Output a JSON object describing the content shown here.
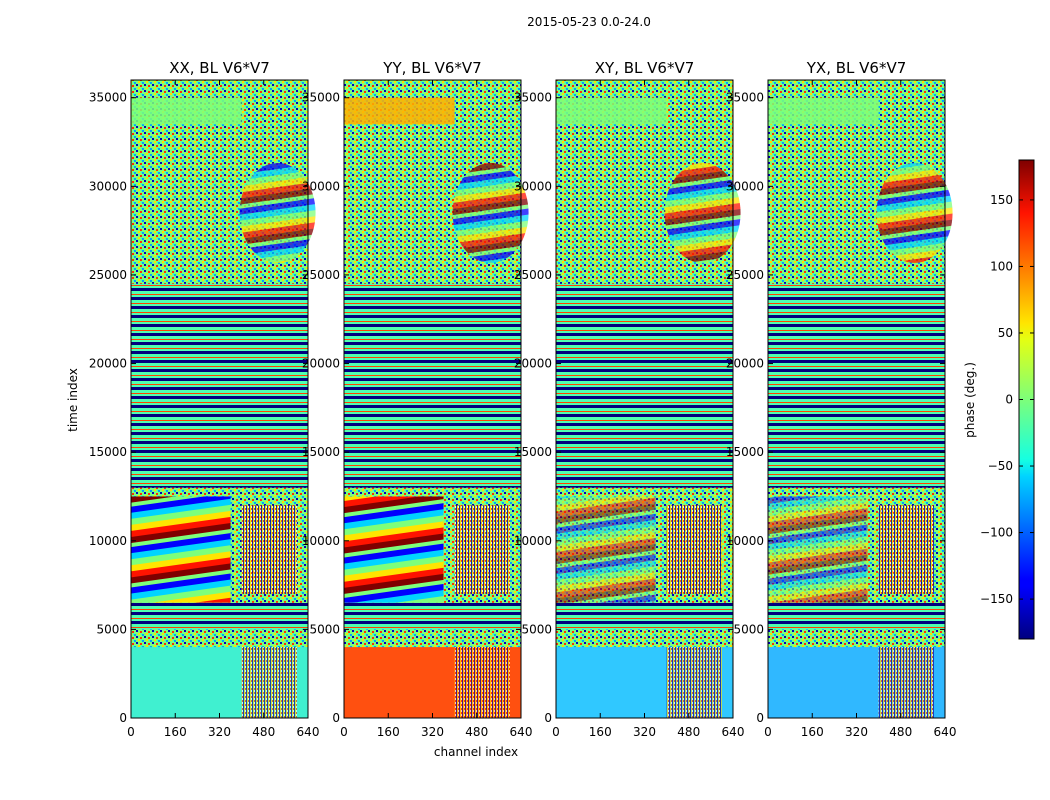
{
  "chart_data": {
    "type": "heatmap",
    "title": "2015-05-23 0.0-24.0",
    "xlabel": "channel index",
    "ylabel": "time index",
    "xlim": [
      0,
      640
    ],
    "ylim": [
      0,
      36000
    ],
    "x_ticks": [
      0,
      160,
      320,
      480,
      640
    ],
    "y_ticks": [
      0,
      5000,
      10000,
      15000,
      20000,
      25000,
      30000,
      35000
    ],
    "colormap": "jet",
    "panels": [
      {
        "id": "xx",
        "title": "XX, BL V6*V7",
        "bottom_band_color": "#40f0d0",
        "bottom_band_phase": -30
      },
      {
        "id": "yy",
        "title": "YY, BL V6*V7",
        "bottom_band_color": "#ff5010",
        "bottom_band_phase": 120
      },
      {
        "id": "xy",
        "title": "XY, BL V6*V7",
        "bottom_band_color": "#30c8ff",
        "bottom_band_phase": -60
      },
      {
        "id": "yx",
        "title": "YX, BL V6*V7",
        "bottom_band_color": "#30b8ff",
        "bottom_band_phase": -70
      }
    ],
    "colorbar": {
      "label": "phase (deg.)",
      "range": [
        -180,
        180
      ],
      "ticks": [
        150,
        100,
        50,
        0,
        -50,
        -100,
        -150
      ],
      "tick_labels": [
        "150",
        "100",
        "50",
        "0",
        "−50",
        "−100",
        "−150"
      ]
    }
  }
}
